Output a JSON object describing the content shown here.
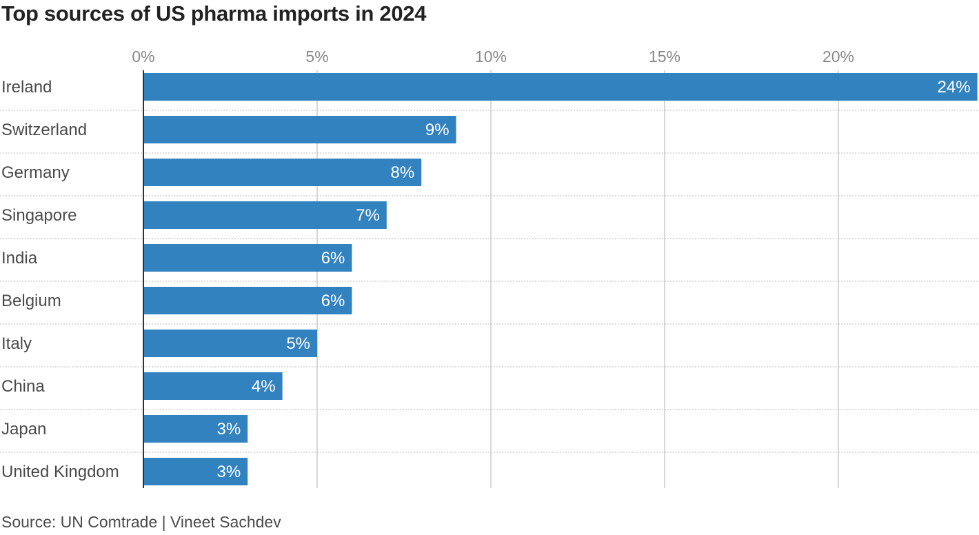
{
  "title": "Top sources of US pharma imports in 2024",
  "source": "Source: UN Comtrade | Vineet Sachdev",
  "colors": {
    "bar": "#3282bf",
    "grid": "#cccccc",
    "text": "#4a4a4a",
    "axis": "#333333"
  },
  "chart_data": {
    "type": "bar",
    "orientation": "horizontal",
    "categories": [
      "Ireland",
      "Switzerland",
      "Germany",
      "Singapore",
      "India",
      "Belgium",
      "Italy",
      "China",
      "Japan",
      "United Kingdom"
    ],
    "values": [
      24,
      9,
      8,
      7,
      6,
      6,
      5,
      4,
      3,
      3
    ],
    "value_labels": [
      "24%",
      "9%",
      "8%",
      "7%",
      "6%",
      "6%",
      "5%",
      "4%",
      "3%",
      "3%"
    ],
    "x_ticks": [
      0,
      5,
      10,
      15,
      20
    ],
    "x_tick_labels": [
      "0%",
      "5%",
      "10%",
      "15%",
      "20%"
    ],
    "xlim": [
      0,
      24
    ],
    "grid": true
  }
}
